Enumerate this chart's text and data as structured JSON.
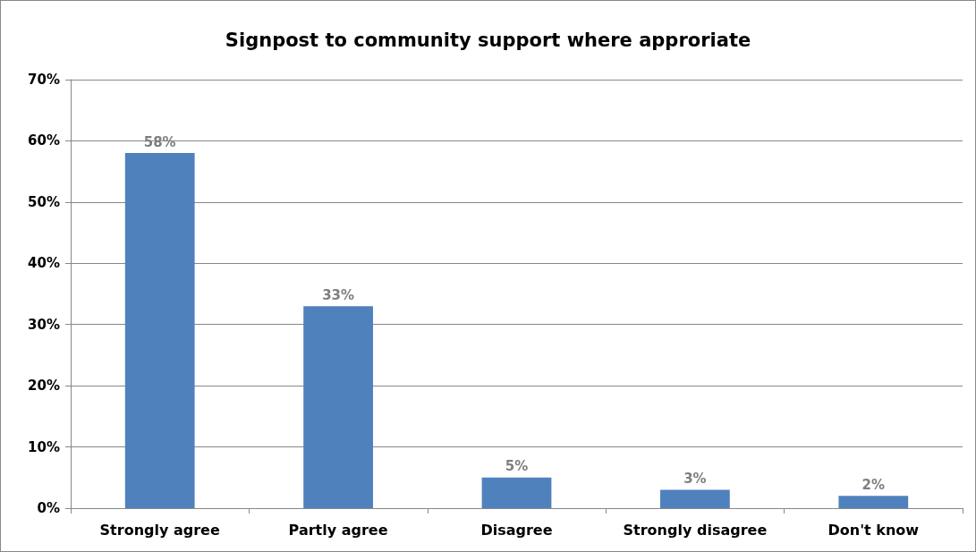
{
  "chart_data": {
    "type": "bar",
    "title": "Signpost to community support where approriate",
    "categories": [
      "Strongly agree",
      "Partly agree",
      "Disagree",
      "Strongly disagree",
      "Don't know"
    ],
    "values": [
      58,
      33,
      5,
      3,
      2
    ],
    "value_labels": [
      "58%",
      "33%",
      "5%",
      "3%",
      "2%"
    ],
    "color": "#4f81bd",
    "ylim": [
      0,
      70
    ],
    "yticks": [
      {
        "value": 0,
        "label": "0%"
      },
      {
        "value": 10,
        "label": "10%"
      },
      {
        "value": 20,
        "label": "20%"
      },
      {
        "value": 30,
        "label": "30%"
      },
      {
        "value": 40,
        "label": "40%"
      },
      {
        "value": 50,
        "label": "50%"
      },
      {
        "value": 60,
        "label": "60%"
      },
      {
        "value": 70,
        "label": "70%"
      }
    ],
    "grid": "y"
  }
}
